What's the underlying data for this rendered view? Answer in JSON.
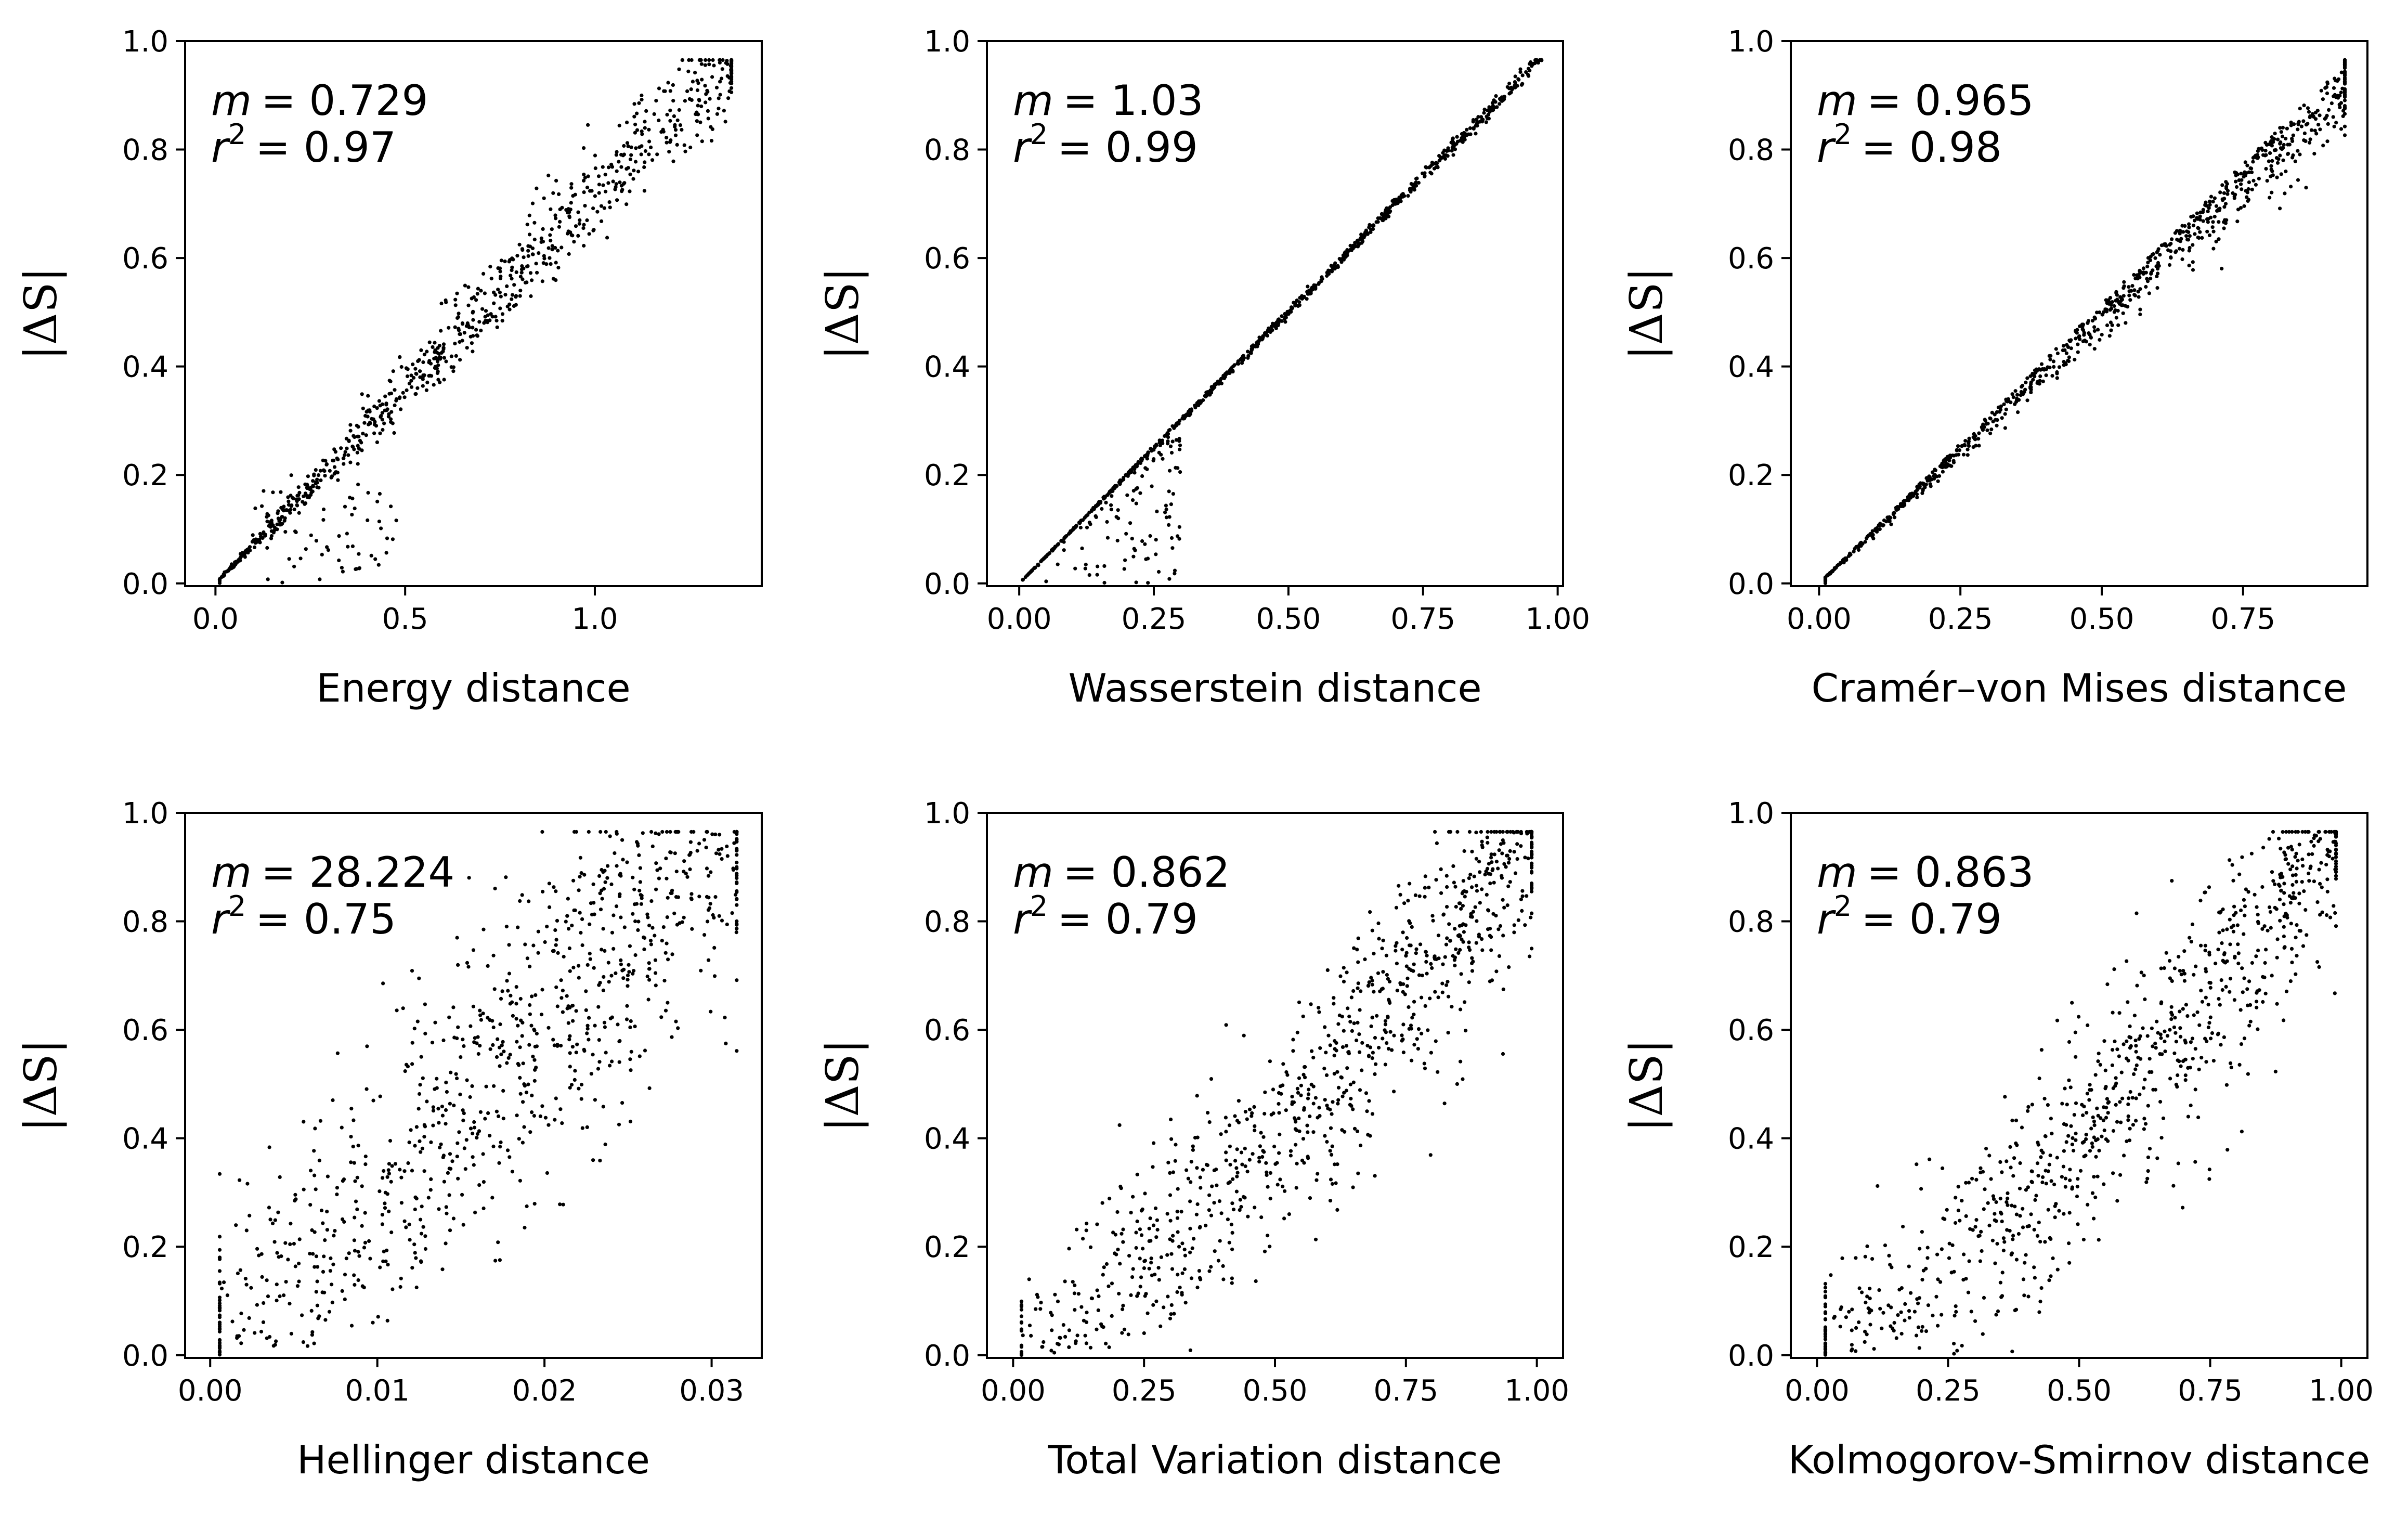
{
  "chart_data": [
    {
      "type": "scatter",
      "xlabel": "Energy distance",
      "ylabel": "|ΔS|",
      "xlim": [
        -0.08,
        1.44
      ],
      "ylim": [
        -0.005,
        1.0
      ],
      "xticks": [
        0.0,
        0.5,
        1.0
      ],
      "xtick_labels": [
        "0.0",
        "0.5",
        "1.0"
      ],
      "yticks": [
        0.0,
        0.2,
        0.4,
        0.6,
        0.8,
        1.0
      ],
      "ytick_labels": [
        "0.0",
        "0.2",
        "0.4",
        "0.6",
        "0.8",
        "1.0"
      ],
      "annotation": {
        "m_label": "m",
        "m_value": "= 0.729",
        "r2_label": "r",
        "r2_exp": "2",
        "r2_value": "= 0.97"
      },
      "slope": 0.729,
      "r2": 0.97,
      "x_max": 1.36,
      "marker_color": "#000000"
    },
    {
      "type": "scatter",
      "xlabel": "Wasserstein distance",
      "ylabel": "|ΔS|",
      "xlim": [
        -0.06,
        1.01
      ],
      "ylim": [
        -0.005,
        1.0
      ],
      "xticks": [
        0.0,
        0.25,
        0.5,
        0.75,
        1.0
      ],
      "xtick_labels": [
        "0.00",
        "0.25",
        "0.50",
        "0.75",
        "1.00"
      ],
      "yticks": [
        0.0,
        0.2,
        0.4,
        0.6,
        0.8,
        1.0
      ],
      "ytick_labels": [
        "0.0",
        "0.2",
        "0.4",
        "0.6",
        "0.8",
        "1.0"
      ],
      "annotation": {
        "m_label": "m",
        "m_value": "= 1.03",
        "r2_label": "r",
        "r2_exp": "2",
        "r2_value": "= 0.99"
      },
      "slope": 1.03,
      "r2": 0.99,
      "x_max": 0.97,
      "marker_color": "#000000"
    },
    {
      "type": "scatter",
      "xlabel": "Cramér–von Mises distance",
      "ylabel": "|ΔS|",
      "xlim": [
        -0.05,
        0.97
      ],
      "ylim": [
        -0.005,
        1.0
      ],
      "xticks": [
        0.0,
        0.25,
        0.5,
        0.75
      ],
      "xtick_labels": [
        "0.00",
        "0.25",
        "0.50",
        "0.75"
      ],
      "yticks": [
        0.0,
        0.2,
        0.4,
        0.6,
        0.8,
        1.0
      ],
      "ytick_labels": [
        "0.0",
        "0.2",
        "0.4",
        "0.6",
        "0.8",
        "1.0"
      ],
      "annotation": {
        "m_label": "m",
        "m_value": "= 0.965",
        "r2_label": "r",
        "r2_exp": "2",
        "r2_value": "= 0.98"
      },
      "slope": 0.965,
      "r2": 0.98,
      "x_max": 0.93,
      "marker_color": "#000000"
    },
    {
      "type": "scatter",
      "xlabel": "Hellinger distance",
      "ylabel": "|ΔS|",
      "xlim": [
        -0.0015,
        0.033
      ],
      "ylim": [
        -0.005,
        1.0
      ],
      "xticks": [
        0.0,
        0.01,
        0.02,
        0.03
      ],
      "xtick_labels": [
        "0.00",
        "0.01",
        "0.02",
        "0.03"
      ],
      "yticks": [
        0.0,
        0.2,
        0.4,
        0.6,
        0.8,
        1.0
      ],
      "ytick_labels": [
        "0.0",
        "0.2",
        "0.4",
        "0.6",
        "0.8",
        "1.0"
      ],
      "annotation": {
        "m_label": "m",
        "m_value": "= 28.224",
        "r2_label": "r",
        "r2_exp": "2",
        "r2_value": "= 0.75"
      },
      "slope": 28.224,
      "r2": 0.75,
      "x_max": 0.0315,
      "marker_color": "#000000"
    },
    {
      "type": "scatter",
      "xlabel": "Total Variation distance",
      "ylabel": "|ΔS|",
      "xlim": [
        -0.05,
        1.05
      ],
      "ylim": [
        -0.005,
        1.0
      ],
      "xticks": [
        0.0,
        0.25,
        0.5,
        0.75,
        1.0
      ],
      "xtick_labels": [
        "0.00",
        "0.25",
        "0.50",
        "0.75",
        "1.00"
      ],
      "yticks": [
        0.0,
        0.2,
        0.4,
        0.6,
        0.8,
        1.0
      ],
      "ytick_labels": [
        "0.0",
        "0.2",
        "0.4",
        "0.6",
        "0.8",
        "1.0"
      ],
      "annotation": {
        "m_label": "m",
        "m_value": "= 0.862",
        "r2_label": "r",
        "r2_exp": "2",
        "r2_value": "= 0.79"
      },
      "slope": 0.862,
      "r2": 0.79,
      "x_max": 0.99,
      "marker_color": "#000000"
    },
    {
      "type": "scatter",
      "xlabel": "Kolmogorov-Smirnov distance",
      "ylabel": "|ΔS|",
      "xlim": [
        -0.05,
        1.05
      ],
      "ylim": [
        -0.005,
        1.0
      ],
      "xticks": [
        0.0,
        0.25,
        0.5,
        0.75,
        1.0
      ],
      "xtick_labels": [
        "0.00",
        "0.25",
        "0.50",
        "0.75",
        "1.00"
      ],
      "yticks": [
        0.0,
        0.2,
        0.4,
        0.6,
        0.8,
        1.0
      ],
      "ytick_labels": [
        "0.0",
        "0.2",
        "0.4",
        "0.6",
        "0.8",
        "1.0"
      ],
      "annotation": {
        "m_label": "m",
        "m_value": "= 0.863",
        "r2_label": "r",
        "r2_exp": "2",
        "r2_value": "= 0.79"
      },
      "slope": 0.863,
      "r2": 0.79,
      "x_max": 0.99,
      "marker_color": "#000000"
    }
  ]
}
